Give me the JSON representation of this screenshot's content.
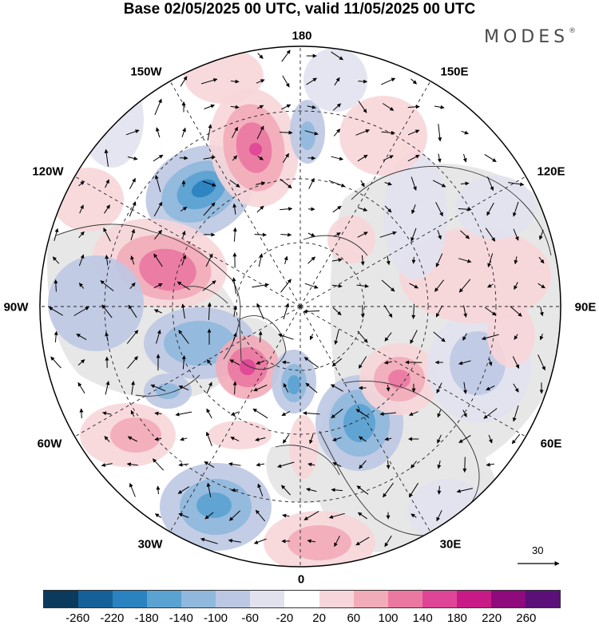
{
  "title": "Base 02/05/2025 00 UTC, valid 11/05/2025 00 UTC",
  "logo": "MODES",
  "logo_mark": "®",
  "longitude_labels": [
    "180",
    "150E",
    "120E",
    "90E",
    "60E",
    "30E",
    "0",
    "30W",
    "60W",
    "90W",
    "120W",
    "150W"
  ],
  "reference_vector_label": "30",
  "legend": {
    "tick_labels": [
      "-260",
      "-220",
      "-180",
      "-140",
      "-100",
      "-60",
      "-20",
      "20",
      "60",
      "100",
      "140",
      "180",
      "220",
      "260"
    ],
    "colors": [
      "#0b3a5c",
      "#16609a",
      "#2a82c0",
      "#5aa2d2",
      "#8fb8dc",
      "#bcc8e3",
      "#e2e2ef",
      "#ffffff",
      "#f7d6d9",
      "#f2abb8",
      "#ea78a1",
      "#df4596",
      "#c81a86",
      "#8e0a7d",
      "#5c0f79"
    ]
  },
  "colors": {
    "land_gray": "#e7e7e7",
    "ocean": "#ffffff"
  }
}
